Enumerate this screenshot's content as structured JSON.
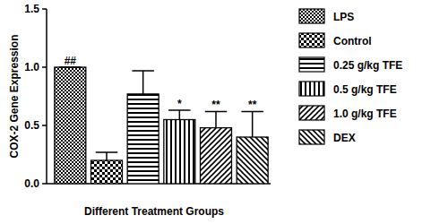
{
  "chart_data": {
    "type": "bar",
    "y_label": "COX-2 Gene Expression",
    "x_label": "Different Treatment Groups",
    "categories": [
      "LPS",
      "Control",
      "0.25 g/kg TFE",
      "0.5 g/kg TFE",
      "1.0 g/kg TFE",
      "DEX"
    ],
    "values": [
      1.0,
      0.2,
      0.77,
      0.55,
      0.48,
      0.4
    ],
    "errors": [
      0,
      0.07,
      0.2,
      0.08,
      0.14,
      0.22
    ],
    "annotations": [
      "##",
      null,
      null,
      "*",
      "**",
      "**"
    ],
    "color": "#000000",
    "ylim": [
      0,
      1.5
    ],
    "yticks": [
      {
        "value": 0,
        "label": "0.0"
      },
      0.5,
      {
        "value": 1,
        "label": "1.0"
      },
      1.5
    ],
    "tick_labels": "y",
    "grid": false,
    "legend": "right"
  }
}
